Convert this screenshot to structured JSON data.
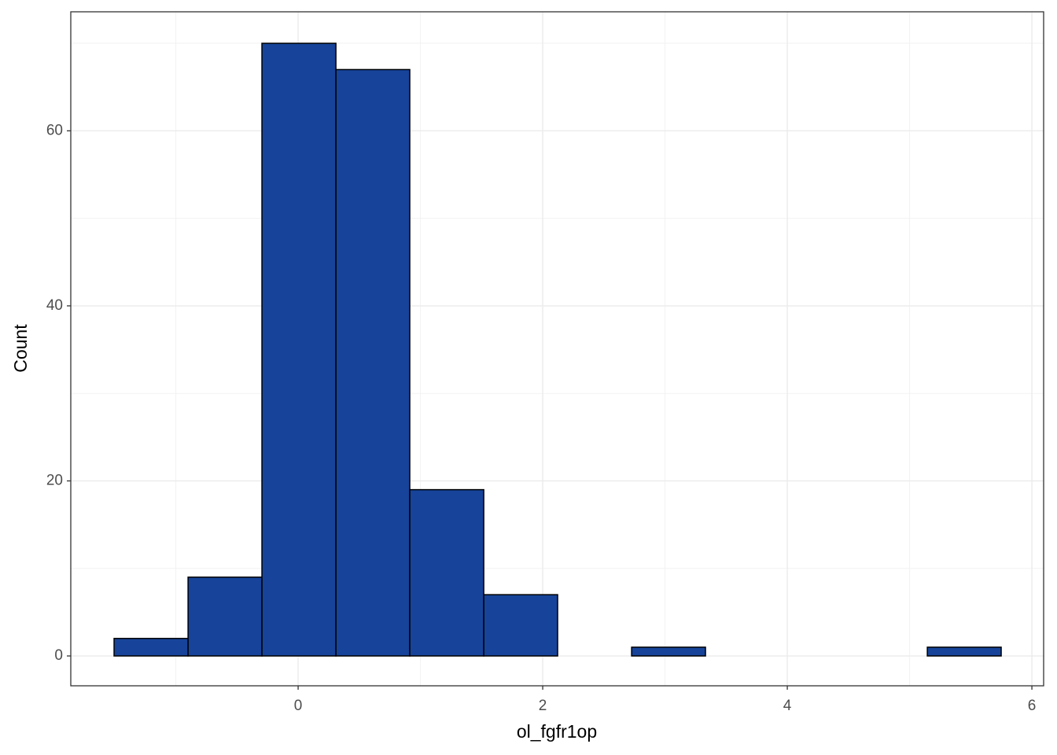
{
  "chart_data": {
    "type": "histogram",
    "x_label": "ol_fgfr1op",
    "y_label": "Count",
    "bins": [
      -1.505,
      -0.9,
      -0.296,
      0.309,
      0.913,
      1.518,
      2.122,
      2.727,
      3.331,
      3.936,
      4.54,
      5.145,
      5.749
    ],
    "values": [
      2,
      9,
      70,
      67,
      19,
      7,
      0,
      1,
      0,
      0,
      0,
      1
    ],
    "color": "#17449a",
    "edge_color": "#000000",
    "xlim": [
      -1.859,
      6.096
    ],
    "ylim": [
      -3.41,
      73.6
    ],
    "xticks": [
      0,
      2,
      4,
      6
    ],
    "yticks": [
      0,
      20,
      40,
      60
    ],
    "grid": true
  }
}
